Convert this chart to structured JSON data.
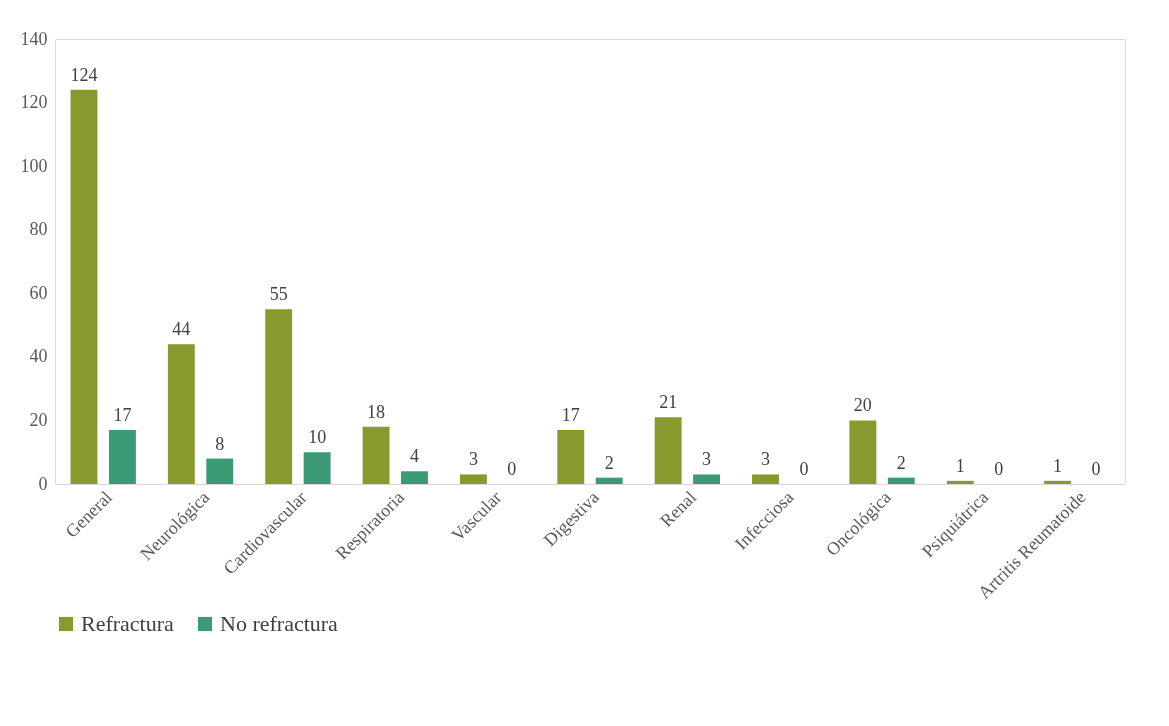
{
  "chart_data": {
    "type": "bar",
    "categories": [
      "General",
      "Neurológica",
      "Cardiovascular",
      "Respiratoria",
      "Vascular",
      "Digestiva",
      "Renal",
      "Infecciosa",
      "Oncológica",
      "Psiquiátrica",
      "Artritis Reumatoide"
    ],
    "series": [
      {
        "name": "Refractura",
        "color": "#869a2e",
        "values": [
          124,
          44,
          55,
          18,
          3,
          17,
          21,
          3,
          20,
          1,
          1
        ]
      },
      {
        "name": "No refractura",
        "color": "#3a9a74",
        "values": [
          17,
          8,
          10,
          4,
          0,
          2,
          3,
          0,
          2,
          0,
          0
        ]
      }
    ],
    "ylim": [
      0,
      140
    ],
    "yticks": [
      0,
      20,
      40,
      60,
      80,
      100,
      120,
      140
    ],
    "data_labels": true,
    "grid": false,
    "legend": "bottom"
  }
}
